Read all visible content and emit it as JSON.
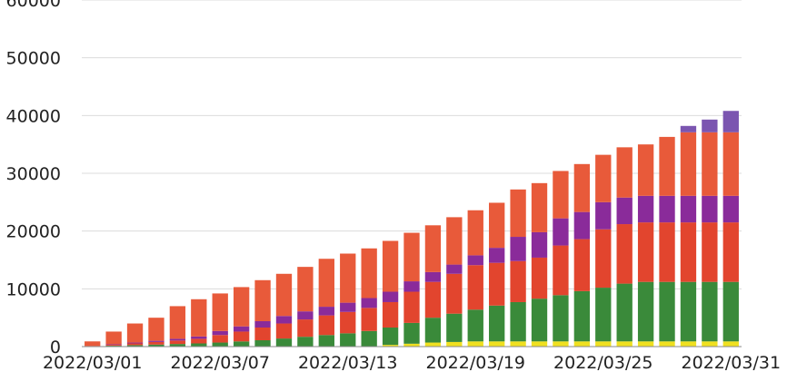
{
  "chart_data": {
    "type": "bar",
    "stacked": true,
    "x": [
      "2022/03/01",
      "2022/03/02",
      "2022/03/03",
      "2022/03/04",
      "2022/03/05",
      "2022/03/06",
      "2022/03/07",
      "2022/03/08",
      "2022/03/09",
      "2022/03/10",
      "2022/03/11",
      "2022/03/12",
      "2022/03/13",
      "2022/03/14",
      "2022/03/15",
      "2022/03/16",
      "2022/03/17",
      "2022/03/18",
      "2022/03/19",
      "2022/03/20",
      "2022/03/21",
      "2022/03/22",
      "2022/03/23",
      "2022/03/24",
      "2022/03/25",
      "2022/03/26",
      "2022/03/27",
      "2022/03/28",
      "2022/03/29",
      "2022/03/30",
      "2022/03/31"
    ],
    "x_tick_labels": [
      "2022/03/01",
      "2022/03/07",
      "2022/03/13",
      "2022/03/19",
      "2022/03/25",
      "2022/03/31"
    ],
    "ylim": [
      0,
      60000
    ],
    "y_ticks": [
      0,
      10000,
      20000,
      30000,
      40000,
      50000,
      60000
    ],
    "grid": true,
    "totals": [
      900,
      2600,
      4000,
      5000,
      7000,
      8200,
      9200,
      10300,
      11500,
      12600,
      13800,
      15200,
      16100,
      17000,
      18300,
      19700,
      21000,
      22400,
      23600,
      24900,
      27200,
      28300,
      30400,
      31600,
      33200,
      34500,
      35000,
      36300,
      38200,
      39300,
      40800
    ],
    "series": [
      {
        "color": "#f0e020",
        "values": [
          0,
          0,
          0,
          0,
          0,
          0,
          0,
          0,
          0,
          0,
          0,
          0,
          0,
          0,
          300,
          500,
          700,
          800,
          900,
          900,
          900,
          900,
          900,
          900,
          900,
          900,
          900,
          900,
          900,
          900,
          900
        ]
      },
      {
        "color": "#3a8a3a",
        "values": [
          50,
          150,
          250,
          350,
          450,
          550,
          700,
          900,
          1100,
          1400,
          1700,
          2000,
          2300,
          2700,
          3000,
          3600,
          4300,
          4900,
          5500,
          6200,
          6800,
          7400,
          8000,
          8700,
          9300,
          10000,
          10300,
          10300,
          10300,
          10300,
          10300
        ]
      },
      {
        "color": "#e2452e",
        "values": [
          50,
          150,
          300,
          450,
          600,
          800,
          1300,
          1700,
          2200,
          2600,
          3000,
          3400,
          3700,
          4000,
          4400,
          5400,
          6200,
          6900,
          7700,
          7400,
          7100,
          7100,
          8600,
          9000,
          10100,
          10300,
          10300,
          10300,
          10300,
          10300,
          10300
        ]
      },
      {
        "color": "#8a2b9a",
        "values": [
          0,
          100,
          150,
          200,
          300,
          400,
          700,
          900,
          1100,
          1300,
          1400,
          1500,
          1600,
          1700,
          1800,
          1800,
          1700,
          1600,
          1700,
          2600,
          4200,
          4400,
          4700,
          4700,
          4700,
          4600,
          4600,
          4600,
          4600,
          4600,
          4600
        ]
      },
      {
        "color": "#e85a3a",
        "values": [
          800,
          2200,
          3300,
          4000,
          5650,
          6450,
          6500,
          6800,
          7100,
          7300,
          7700,
          8300,
          8500,
          8600,
          8800,
          8400,
          8100,
          8200,
          7800,
          7800,
          8200,
          8500,
          8200,
          8300,
          8200,
          8700,
          8900,
          10200,
          11000,
          11000,
          11000
        ]
      },
      {
        "color": "#7b55b0",
        "values": [
          0,
          0,
          0,
          0,
          0,
          0,
          0,
          0,
          0,
          0,
          0,
          0,
          0,
          0,
          0,
          0,
          0,
          0,
          0,
          0,
          0,
          0,
          0,
          0,
          0,
          0,
          0,
          0,
          1100,
          2200,
          3700
        ]
      }
    ]
  }
}
